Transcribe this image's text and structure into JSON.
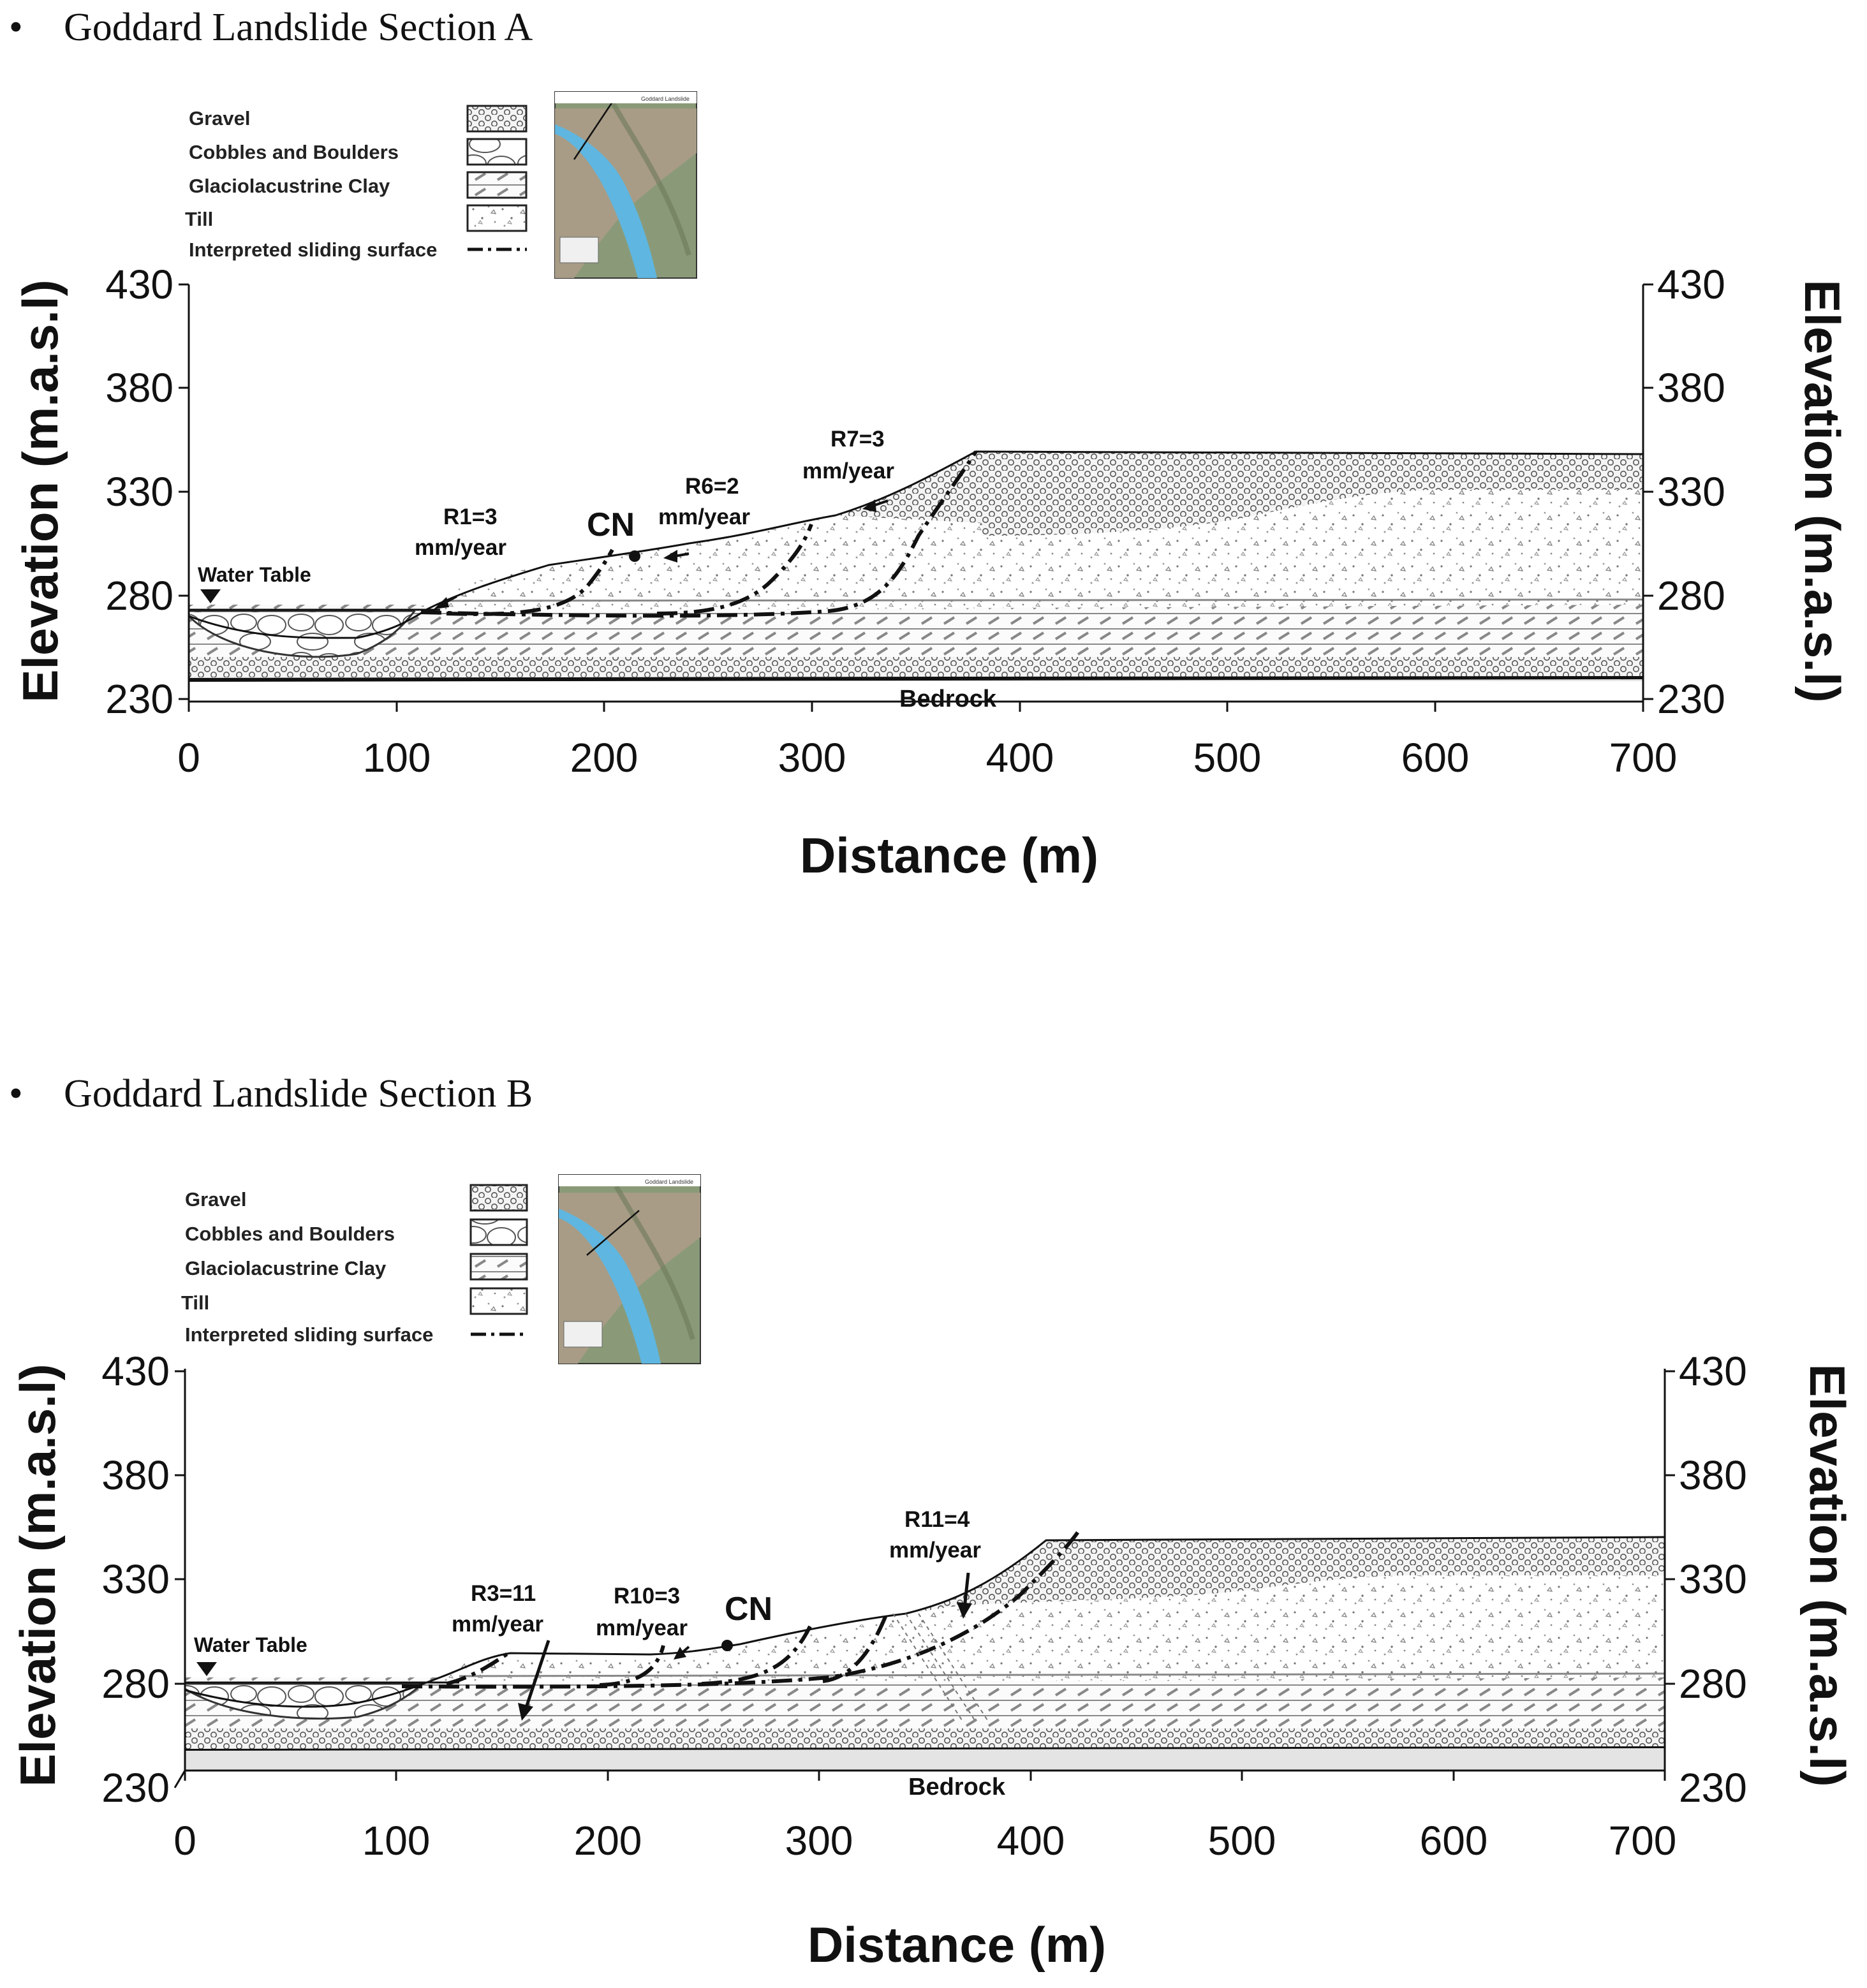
{
  "sections": [
    {
      "title": "Goddard Landslide Section A",
      "legend": {
        "items": [
          {
            "label": "Gravel",
            "pattern": "gravel"
          },
          {
            "label": "Cobbles and Boulders",
            "pattern": "cobbles"
          },
          {
            "label": "Glaciolacustrine Clay",
            "pattern": "clay"
          },
          {
            "label": "Till",
            "pattern": "till"
          },
          {
            "label": "Interpreted sliding surface",
            "pattern": "dashdot"
          }
        ]
      },
      "inset_map_title": "Goddard Landslide",
      "axes": {
        "left_title": "Elevation (m.a.s.l)",
        "right_title": "Elevation (m.a.s.l)",
        "x_title": "Distance (m)",
        "y_ticks": [
          "430",
          "380",
          "330",
          "280",
          "230"
        ],
        "x_ticks": [
          "0",
          "100",
          "200",
          "300",
          "400",
          "500",
          "600",
          "700"
        ]
      },
      "labels": {
        "water_table": "Water Table",
        "bedrock": "Bedrock",
        "cn": "CN"
      },
      "annotations": [
        {
          "line1": "R1=3",
          "line2": "mm/year"
        },
        {
          "line1": "R6=2",
          "line2": "mm/year"
        },
        {
          "line1": "R7=3",
          "line2": "mm/year"
        }
      ],
      "chart_data": {
        "type": "cross-section",
        "xlabel": "Distance (m)",
        "ylabel": "Elevation (m.a.s.l)",
        "xlim": [
          0,
          700
        ],
        "ylim": [
          220,
          430
        ],
        "ground_surface": [
          [
            0,
            268
          ],
          [
            40,
            262
          ],
          [
            100,
            266
          ],
          [
            130,
            275
          ],
          [
            160,
            286
          ],
          [
            200,
            294
          ],
          [
            240,
            302
          ],
          [
            270,
            306
          ],
          [
            300,
            312
          ],
          [
            330,
            322
          ],
          [
            360,
            338
          ],
          [
            380,
            349
          ],
          [
            700,
            347
          ]
        ],
        "water_table_elevation": 275,
        "bedrock_top_elevation": 240,
        "cn_point": [
          215,
          300
        ]
      }
    },
    {
      "title": "Goddard Landslide Section B",
      "legend": {
        "items": [
          {
            "label": "Gravel",
            "pattern": "gravel"
          },
          {
            "label": "Cobbles and Boulders",
            "pattern": "cobbles"
          },
          {
            "label": "Glaciolacustrine Clay",
            "pattern": "clay"
          },
          {
            "label": "Till",
            "pattern": "till"
          },
          {
            "label": "Interpreted sliding surface",
            "pattern": "dashdot"
          }
        ]
      },
      "inset_map_title": "Goddard Landslide",
      "axes": {
        "left_title": "Elevation (m.a.s.l)",
        "right_title": "Elevation (m.a.s.l)",
        "x_title": "Distance (m)",
        "y_ticks": [
          "430",
          "380",
          "330",
          "280",
          "230"
        ],
        "x_ticks": [
          "0",
          "100",
          "200",
          "300",
          "400",
          "500",
          "600",
          "700"
        ]
      },
      "labels": {
        "water_table": "Water Table",
        "bedrock": "Bedrock",
        "cn": "CN"
      },
      "annotations": [
        {
          "line1": "R3=11",
          "line2": "mm/year"
        },
        {
          "line1": "R10=3",
          "line2": "mm/year"
        },
        {
          "line1": "R11=4",
          "line2": "mm/year"
        }
      ],
      "chart_data": {
        "type": "cross-section",
        "xlabel": "Distance (m)",
        "ylabel": "Elevation (m.a.s.l)",
        "xlim": [
          0,
          700
        ],
        "ylim": [
          220,
          430
        ],
        "ground_surface": [
          [
            0,
            270
          ],
          [
            50,
            263
          ],
          [
            100,
            268
          ],
          [
            130,
            278
          ],
          [
            160,
            296
          ],
          [
            220,
            294
          ],
          [
            260,
            298
          ],
          [
            300,
            302
          ],
          [
            340,
            316
          ],
          [
            380,
            330
          ],
          [
            420,
            348
          ],
          [
            700,
            348
          ]
        ],
        "water_table_elevation": 277,
        "bedrock_top_elevation": 240,
        "cn_point": [
          257,
          298
        ]
      }
    }
  ]
}
